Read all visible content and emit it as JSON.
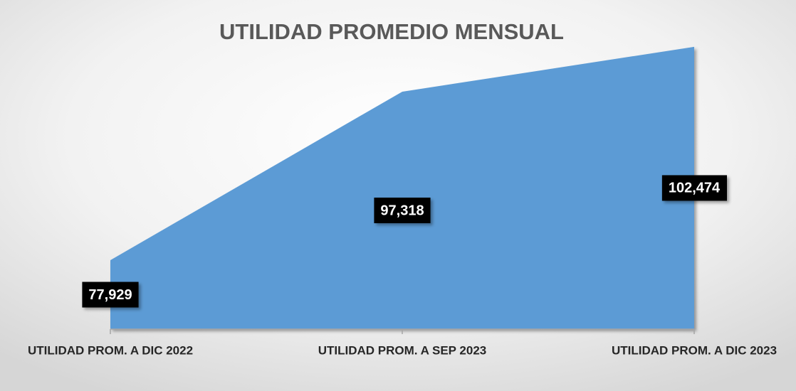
{
  "chart_data": {
    "type": "area",
    "title": "UTILIDAD PROMEDIO MENSUAL",
    "categories": [
      "UTILIDAD PROM. A DIC 2022",
      "UTILIDAD PROM. A SEP 2023",
      "UTILIDAD PROM. A DIC 2023"
    ],
    "values": [
      77929,
      97318,
      102474
    ],
    "value_labels": [
      "77,929",
      "97,318",
      "102,474"
    ],
    "color": "#5b9bd5",
    "ylim": [
      70000,
      105000
    ]
  }
}
